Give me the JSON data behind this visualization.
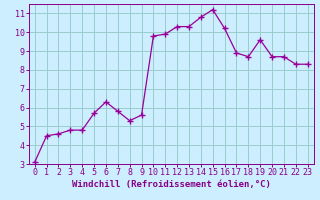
{
  "x": [
    0,
    1,
    2,
    3,
    4,
    5,
    6,
    7,
    8,
    9,
    10,
    11,
    12,
    13,
    14,
    15,
    16,
    17,
    18,
    19,
    20,
    21,
    22,
    23
  ],
  "y": [
    3.1,
    4.5,
    4.6,
    4.8,
    4.8,
    5.7,
    6.3,
    5.8,
    5.3,
    5.6,
    9.8,
    9.9,
    10.3,
    10.3,
    10.8,
    11.2,
    10.2,
    8.9,
    8.7,
    9.6,
    8.7,
    8.7,
    8.3,
    8.3
  ],
  "line_color": "#990099",
  "marker": "+",
  "marker_size": 4,
  "bg_color": "#cceeff",
  "grid_color": "#99cccc",
  "xlabel": "Windchill (Refroidissement éolien,°C)",
  "ylim": [
    3,
    11.5
  ],
  "xlim": [
    -0.5,
    23.5
  ],
  "yticks": [
    3,
    4,
    5,
    6,
    7,
    8,
    9,
    10,
    11
  ],
  "xticks": [
    0,
    1,
    2,
    3,
    4,
    5,
    6,
    7,
    8,
    9,
    10,
    11,
    12,
    13,
    14,
    15,
    16,
    17,
    18,
    19,
    20,
    21,
    22,
    23
  ],
  "tick_color": "#880088",
  "label_color": "#880088",
  "label_fontsize": 6.5,
  "tick_fontsize": 6
}
